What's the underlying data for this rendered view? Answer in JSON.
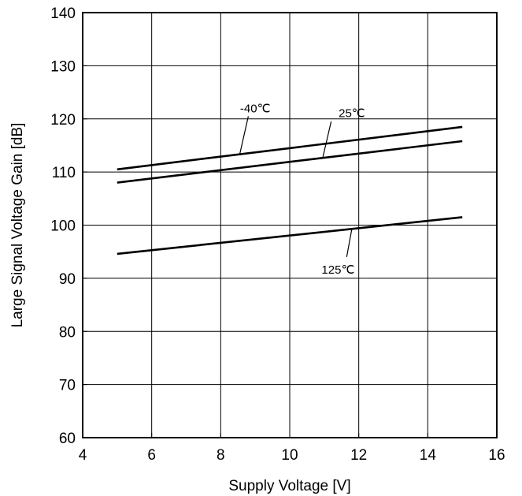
{
  "chart_data": {
    "type": "line",
    "xlabel": "Supply Voltage [V]",
    "ylabel": "Large Signal Voltage Gain [dB]",
    "xlim": [
      4,
      16
    ],
    "ylim": [
      60,
      140
    ],
    "xticks": [
      "4",
      "6",
      "8",
      "10",
      "12",
      "14",
      "16"
    ],
    "yticks": [
      "60",
      "70",
      "80",
      "90",
      "100",
      "110",
      "120",
      "130",
      "140"
    ],
    "grid": true,
    "series": [
      {
        "name": "-40℃",
        "x": [
          5,
          15
        ],
        "y": [
          110.5,
          118.5
        ]
      },
      {
        "name": "25℃",
        "x": [
          5,
          15
        ],
        "y": [
          108,
          115.8
        ]
      },
      {
        "name": "125℃",
        "x": [
          5,
          15
        ],
        "y": [
          94.6,
          101.5
        ]
      }
    ]
  }
}
